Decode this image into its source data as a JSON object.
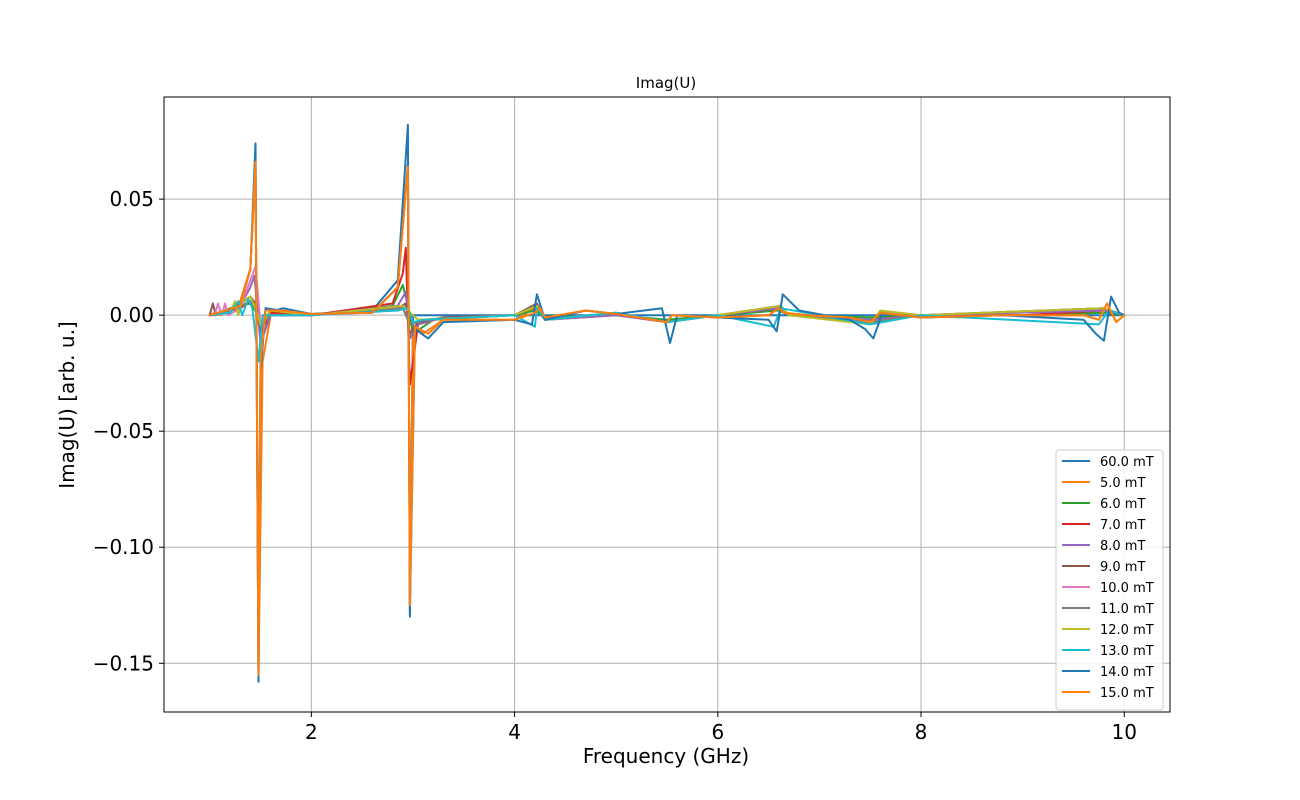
{
  "chart_data": {
    "type": "line",
    "title": "Imag(U)",
    "xlabel": "Frequency (GHz)",
    "ylabel": "Imag(U) [arb. u.]",
    "xlim": [
      0.55,
      10.45
    ],
    "ylim": [
      -0.171,
      0.094
    ],
    "xticks": [
      2,
      4,
      6,
      8,
      10
    ],
    "xtick_labels": [
      "2",
      "4",
      "6",
      "8",
      "10"
    ],
    "yticks": [
      0.05,
      0.0,
      -0.05,
      -0.1,
      -0.15
    ],
    "ytick_labels": [
      "0.05",
      "0.00",
      "−0.05",
      "−0.10",
      "−0.15"
    ],
    "grid": true,
    "legend_position": "lower right",
    "series": [
      {
        "name": "60.0 mT",
        "color": "#1f77b4",
        "x": [
          1.0,
          1.3,
          1.4,
          1.45,
          1.48,
          1.5,
          1.55,
          1.7,
          2.0,
          2.6,
          2.85,
          2.95,
          2.97,
          3.0,
          3.1,
          3.5,
          4.0,
          4.15,
          4.22,
          4.28,
          4.35,
          4.6,
          5.0,
          5.45,
          5.52,
          5.6,
          6.0,
          6.5,
          6.6,
          6.63,
          6.75,
          7.2,
          7.4,
          7.52,
          7.6,
          8.0,
          8.8,
          9.6,
          9.75,
          9.83,
          9.9,
          10.0
        ],
        "y": [
          0.0,
          0.004,
          0.02,
          0.074,
          -0.158,
          -0.02,
          0.003,
          0.002,
          0.0005,
          0.002,
          0.015,
          0.082,
          -0.13,
          0.0,
          0.0,
          0.0,
          0.0,
          0.0,
          0.0,
          0.0,
          0.0,
          0.0,
          0.0,
          0.0,
          0.0,
          0.0,
          0.0,
          0.0,
          0.0,
          0.0,
          0.0,
          0.0,
          0.0,
          0.0,
          0.0,
          0.0,
          0.0,
          0.0,
          0.0,
          0.0,
          0.0,
          0.0
        ]
      },
      {
        "name": "5.0 mT",
        "color": "#ff7f0e",
        "x": [
          1.0,
          1.05,
          1.1,
          1.2,
          1.3,
          1.4,
          1.45,
          1.48,
          1.52,
          1.6,
          1.75,
          2.0,
          2.6,
          2.85,
          2.95,
          2.97,
          3.0,
          3.1,
          3.3,
          4.0,
          4.2,
          4.3,
          4.7,
          5.0,
          5.5,
          5.55,
          6.0,
          6.5,
          6.6,
          6.65,
          6.9,
          7.3,
          7.5,
          7.6,
          8.0,
          8.8,
          9.6,
          9.75,
          9.83,
          9.92,
          10.0
        ],
        "y": [
          0.0,
          0.001,
          0.0,
          0.002,
          0.006,
          0.02,
          0.067,
          -0.155,
          -0.02,
          0.0,
          0.002,
          0.0005,
          0.001,
          0.012,
          0.065,
          -0.125,
          -0.005,
          -0.008,
          -0.002,
          -0.002,
          0.003,
          -0.002,
          0.002,
          0.0005,
          -0.003,
          0.0,
          -0.001,
          0.0,
          0.003,
          0.001,
          0.0,
          -0.001,
          -0.003,
          0.001,
          -0.001,
          0.0,
          0.0,
          -0.002,
          0.005,
          -0.003,
          0.0
        ]
      },
      {
        "name": "6.0 mT",
        "color": "#2ca02c",
        "x": [
          1.0,
          1.1,
          1.2,
          1.3,
          1.4,
          1.45,
          1.5,
          1.6,
          2.0,
          2.8,
          2.9,
          2.95,
          3.0,
          3.2,
          4.0,
          4.2,
          4.3,
          5.0,
          5.5,
          6.0,
          6.6,
          6.7,
          7.5,
          8.0,
          9.0,
          9.8,
          10.0
        ],
        "y": [
          0.0,
          0.001,
          0.003,
          0.004,
          0.005,
          0.002,
          -0.006,
          0.0,
          0.0,
          0.004,
          0.013,
          0.004,
          -0.008,
          -0.002,
          0.0,
          0.002,
          -0.001,
          0.0,
          -0.002,
          0.0,
          0.002,
          0.0,
          -0.001,
          0.0,
          0.0,
          0.001,
          0.0
        ]
      },
      {
        "name": "7.0 mT",
        "color": "#d62728",
        "x": [
          1.0,
          1.1,
          1.2,
          1.3,
          1.4,
          1.45,
          1.5,
          1.6,
          2.0,
          2.8,
          2.9,
          2.93,
          2.97,
          3.05,
          3.3,
          4.0,
          4.22,
          4.3,
          5.0,
          5.5,
          6.0,
          6.62,
          6.7,
          7.5,
          8.0,
          9.0,
          9.8,
          10.0
        ],
        "y": [
          0.0,
          0.001,
          0.002,
          0.003,
          0.006,
          0.004,
          -0.008,
          0.001,
          0.0,
          0.005,
          0.018,
          0.029,
          -0.03,
          -0.004,
          -0.001,
          0.0,
          0.004,
          -0.002,
          0.0,
          -0.003,
          0.0,
          0.003,
          0.0,
          -0.002,
          0.0,
          0.0,
          0.002,
          0.0
        ]
      },
      {
        "name": "8.0 mT",
        "color": "#9467bd",
        "x": [
          1.0,
          1.1,
          1.2,
          1.3,
          1.4,
          1.44,
          1.5,
          1.6,
          2.0,
          2.85,
          2.93,
          2.97,
          3.05,
          3.3,
          4.0,
          4.22,
          4.3,
          5.0,
          5.5,
          6.0,
          6.6,
          6.7,
          7.5,
          8.0,
          9.8,
          10.0
        ],
        "y": [
          0.0,
          0.001,
          0.002,
          0.004,
          0.012,
          0.017,
          -0.012,
          0.0,
          0.0,
          0.004,
          0.01,
          -0.01,
          -0.004,
          -0.001,
          0.0,
          0.004,
          -0.002,
          0.0,
          -0.003,
          0.0,
          0.003,
          0.0,
          -0.002,
          0.0,
          0.002,
          0.0
        ]
      },
      {
        "name": "9.0 mT",
        "color": "#8c564b",
        "x": [
          1.0,
          1.03,
          1.06,
          1.2,
          1.4,
          1.45,
          1.5,
          1.6,
          2.0,
          2.85,
          2.93,
          2.97,
          3.05,
          3.3,
          4.0,
          4.22,
          4.3,
          5.0,
          5.5,
          6.0,
          6.62,
          6.7,
          7.5,
          8.0,
          9.8,
          10.0
        ],
        "y": [
          0.0,
          0.005,
          0.0,
          0.002,
          0.008,
          0.005,
          -0.006,
          0.002,
          0.0,
          0.003,
          0.005,
          -0.008,
          -0.003,
          -0.001,
          0.0,
          0.005,
          -0.002,
          0.001,
          -0.003,
          0.0,
          0.004,
          0.0,
          -0.003,
          0.0,
          0.003,
          0.0
        ]
      },
      {
        "name": "10.0 mT",
        "color": "#e377c2",
        "x": [
          1.0,
          1.05,
          1.08,
          1.12,
          1.15,
          1.18,
          1.3,
          1.4,
          1.45,
          1.5,
          1.6,
          2.0,
          2.9,
          2.97,
          3.1,
          4.0,
          4.22,
          4.3,
          5.0,
          5.5,
          6.0,
          6.62,
          6.7,
          7.5,
          8.0,
          9.8,
          10.0
        ],
        "y": [
          0.0,
          0.0,
          0.005,
          0.0,
          0.005,
          0.0,
          0.003,
          0.015,
          0.021,
          -0.004,
          0.0,
          0.0,
          0.003,
          -0.004,
          -0.002,
          0.0,
          0.004,
          -0.002,
          0.001,
          -0.003,
          0.0,
          0.004,
          0.0,
          -0.003,
          0.0,
          0.003,
          0.0
        ]
      },
      {
        "name": "11.0 mT",
        "color": "#7f7f7f",
        "x": [
          1.0,
          1.2,
          1.4,
          1.45,
          1.5,
          1.6,
          2.0,
          2.9,
          2.97,
          3.1,
          4.0,
          4.22,
          4.3,
          5.0,
          5.5,
          6.0,
          6.62,
          6.7,
          7.5,
          8.0,
          9.8,
          10.0
        ],
        "y": [
          0.0,
          0.002,
          0.006,
          0.004,
          -0.005,
          0.0,
          0.0,
          0.003,
          -0.004,
          -0.002,
          0.0,
          0.004,
          -0.002,
          0.001,
          -0.003,
          0.0,
          0.004,
          0.0,
          -0.003,
          0.0,
          0.003,
          0.0
        ]
      },
      {
        "name": "12.0 mT",
        "color": "#bcbd22",
        "x": [
          1.0,
          1.2,
          1.25,
          1.28,
          1.32,
          1.4,
          1.45,
          1.5,
          1.6,
          2.0,
          2.9,
          2.95,
          3.05,
          4.0,
          4.22,
          4.3,
          5.0,
          5.5,
          6.0,
          6.62,
          6.7,
          7.5,
          7.6,
          8.0,
          9.8,
          10.0
        ],
        "y": [
          0.0,
          0.001,
          0.006,
          0.0,
          0.006,
          0.008,
          0.003,
          -0.004,
          0.002,
          0.0,
          0.004,
          0.002,
          -0.002,
          0.0,
          0.004,
          -0.002,
          0.001,
          -0.003,
          0.0,
          0.004,
          0.0,
          -0.004,
          0.002,
          0.0,
          0.003,
          0.0
        ]
      },
      {
        "name": "13.0 mT",
        "color": "#17becf",
        "x": [
          1.0,
          1.2,
          1.28,
          1.32,
          1.38,
          1.42,
          1.48,
          1.52,
          1.6,
          2.0,
          2.85,
          2.95,
          3.0,
          3.1,
          4.0,
          4.2,
          4.22,
          4.3,
          5.0,
          5.5,
          6.0,
          6.55,
          6.62,
          7.5,
          8.0,
          9.75,
          9.85,
          10.0
        ],
        "y": [
          0.0,
          0.001,
          0.006,
          0.0,
          0.007,
          0.003,
          -0.02,
          0.0,
          0.0,
          0.0,
          0.002,
          0.003,
          -0.003,
          -0.002,
          0.0,
          -0.005,
          0.003,
          -0.002,
          0.001,
          -0.003,
          0.0,
          -0.005,
          0.003,
          -0.004,
          0.0,
          -0.004,
          0.002,
          0.0
        ]
      },
      {
        "name": "14.0 mT",
        "color": "#1f77b4",
        "x": [
          1.0,
          1.3,
          1.4,
          1.45,
          1.48,
          1.5,
          1.55,
          1.65,
          1.72,
          2.0,
          2.6,
          2.85,
          2.95,
          2.97,
          3.02,
          3.15,
          3.3,
          4.0,
          4.17,
          4.22,
          4.3,
          4.7,
          5.0,
          5.45,
          5.53,
          5.6,
          6.0,
          6.5,
          6.58,
          6.64,
          6.8,
          7.3,
          7.45,
          7.53,
          7.62,
          8.0,
          8.8,
          9.6,
          9.72,
          9.8,
          9.87,
          9.95,
          10.0
        ],
        "y": [
          0.0,
          0.004,
          0.02,
          0.068,
          -0.157,
          -0.025,
          0.003,
          0.002,
          0.003,
          0.0005,
          0.001,
          0.012,
          0.065,
          -0.128,
          -0.006,
          -0.01,
          -0.003,
          -0.002,
          -0.004,
          0.009,
          -0.002,
          0.002,
          0.0005,
          0.003,
          -0.012,
          0.0,
          -0.001,
          -0.002,
          -0.007,
          0.009,
          0.002,
          -0.002,
          -0.006,
          -0.01,
          0.001,
          -0.001,
          0.0,
          -0.002,
          -0.008,
          -0.011,
          0.008,
          0.001,
          0.0
        ]
      },
      {
        "name": "15.0 mT",
        "color": "#ff7f0e",
        "x": [
          1.0,
          1.3,
          1.4,
          1.45,
          1.48,
          1.5,
          1.55,
          1.7,
          2.0,
          2.6,
          2.85,
          2.95,
          2.97,
          3.02,
          3.15,
          3.3,
          4.0,
          4.2,
          4.25,
          4.3,
          4.7,
          5.0,
          5.5,
          5.55,
          6.0,
          6.5,
          6.6,
          6.65,
          6.9,
          7.3,
          7.5,
          7.6,
          8.0,
          8.8,
          9.6,
          9.75,
          9.83,
          9.92,
          10.0
        ],
        "y": [
          0.0,
          0.004,
          0.02,
          0.066,
          -0.155,
          -0.02,
          0.002,
          0.002,
          0.0005,
          0.001,
          0.012,
          0.064,
          -0.125,
          -0.005,
          -0.008,
          -0.002,
          -0.002,
          0.001,
          0.003,
          -0.001,
          0.002,
          0.0005,
          -0.003,
          0.0,
          -0.001,
          0.0,
          0.003,
          0.001,
          0.0,
          -0.001,
          -0.003,
          0.001,
          -0.001,
          0.0,
          0.0,
          -0.002,
          0.005,
          -0.003,
          0.0
        ]
      }
    ]
  }
}
